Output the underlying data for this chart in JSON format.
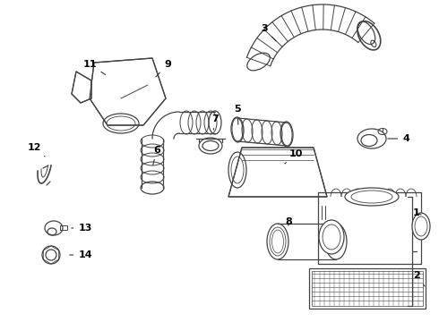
{
  "bg_color": "#ffffff",
  "line_color": "#444444",
  "text_color": "#000000",
  "lw": 0.9
}
